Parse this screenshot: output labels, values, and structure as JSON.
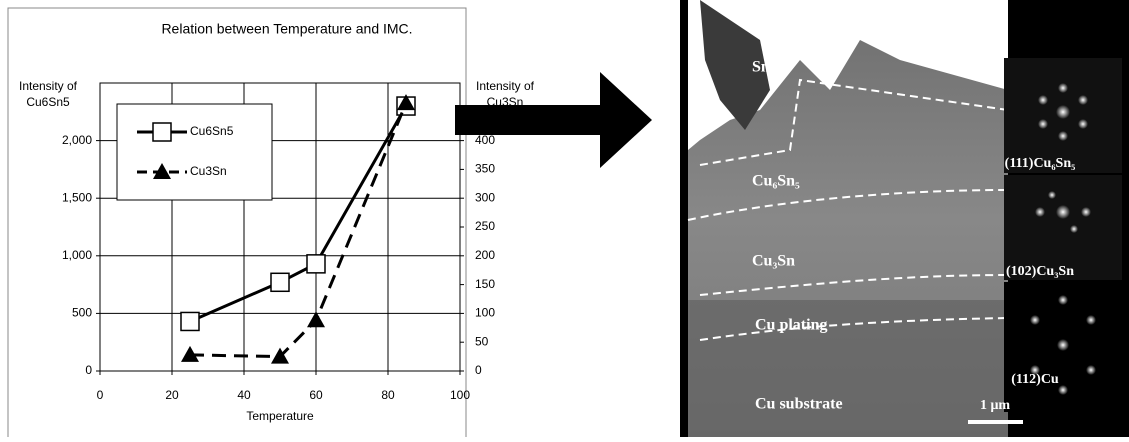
{
  "chart_data": {
    "type": "line",
    "title": "Relation between Temperature and IMC.",
    "x_label": "Temperature",
    "y_label": [
      "Intensity of",
      "Cu6Sn5"
    ],
    "y2_label": [
      "Intensity of",
      "Cu3Sn"
    ],
    "x": [
      25,
      50,
      60,
      85
    ],
    "series": [
      {
        "name": "Cu6Sn5",
        "color": "#000000",
        "marker": "square",
        "dash": false,
        "values": [
          430,
          770,
          930,
          2300
        ]
      },
      {
        "name": "Cu3Sn",
        "color": "#000000",
        "marker": "triangle",
        "dash": true,
        "axis": "y2",
        "values": [
          28,
          25,
          88,
          465
        ]
      }
    ],
    "xlim": [
      0,
      100
    ],
    "xticks": [
      0,
      20,
      40,
      60,
      80,
      100
    ],
    "ylim": [
      0,
      2500
    ],
    "yticks": [
      0,
      500,
      {
        "value": 1000,
        "label": "1,000"
      },
      {
        "value": 1500,
        "label": "1,500"
      },
      {
        "value": 2000,
        "label": "2,000"
      }
    ],
    "y2lim": [
      0,
      500
    ],
    "y2ticks": [
      0,
      50,
      100,
      150,
      200,
      250,
      300,
      350,
      400
    ],
    "grid": true,
    "legend": "upper left"
  },
  "image": {
    "labels": [
      "Sn",
      "Cu₆Sn₅",
      "Cu₃Sn",
      "Cu plating",
      "Cu substrate"
    ],
    "scale_bar": "1 μm",
    "insets": [
      "(111)Cu₆Sn₅",
      "(102)Cu₃Sn",
      "(112)Cu"
    ]
  }
}
